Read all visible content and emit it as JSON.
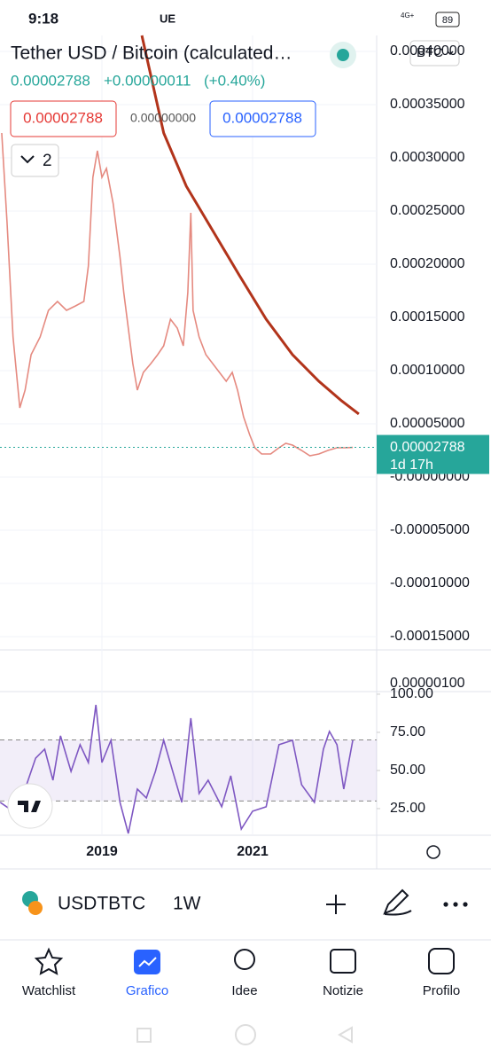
{
  "status_bar": {
    "time": "9:18",
    "region": "UE",
    "network": "4G+",
    "battery": "89"
  },
  "header": {
    "title": "Tether USD / Bitcoin (calculated…",
    "price": "0.00002788",
    "change": "+0.00000011",
    "change_pct": "(+0.40%)",
    "sell": "0.00002788",
    "spread": "0.00000000",
    "buy": "0.00002788",
    "indicators": "2",
    "currency": "BTC"
  },
  "price_chart": {
    "type": "line",
    "xlim": [
      2017.647,
      2022.647
    ],
    "xticks": [
      2019,
      2021
    ],
    "ylim": [
      -0.00016,
      0.000415
    ],
    "yticks": [
      {
        "value": 0.0004,
        "label": "0.00040000"
      },
      {
        "value": 0.00035,
        "label": "0.00035000"
      },
      {
        "value": 0.0003,
        "label": "0.00030000"
      },
      {
        "value": 0.00025,
        "label": "0.00025000"
      },
      {
        "value": 0.0002,
        "label": "0.00020000"
      },
      {
        "value": 0.00015,
        "label": "0.00015000"
      },
      {
        "value": 0.0001,
        "label": "0.00010000"
      },
      {
        "value": 5e-05,
        "label": "0.00005000"
      },
      {
        "value": 0,
        "label": "-0.00000000"
      },
      {
        "value": -5e-05,
        "label": "-0.00005000"
      },
      {
        "value": -0.0001,
        "label": "-0.00010000"
      },
      {
        "value": -0.00015,
        "label": "-0.00015000"
      }
    ],
    "last_price": {
      "value": 2.788e-05,
      "label": "0.00002788",
      "countdown": "1d 17h",
      "color": "#26a69a"
    },
    "series": [
      {
        "color": "#e58a80",
        "x": [
          2017.67,
          2017.74,
          2017.82,
          2017.91,
          2017.98,
          2018.06,
          2018.18,
          2018.29,
          2018.41,
          2018.53,
          2018.65,
          2018.76,
          2018.82,
          2018.88,
          2018.94,
          2019.0,
          2019.06,
          2019.15,
          2019.24,
          2019.29,
          2019.35,
          2019.41,
          2019.47,
          2019.55,
          2019.65,
          2019.74,
          2019.82,
          2019.91,
          2020.0,
          2020.08,
          2020.14,
          2020.18,
          2020.21,
          2020.29,
          2020.38,
          2020.47,
          2020.56,
          2020.65,
          2020.73,
          2020.8,
          2020.88,
          2020.96,
          2021.03,
          2021.12,
          2021.24,
          2021.35,
          2021.44,
          2021.53,
          2021.65,
          2021.76,
          2021.88,
          2022.0,
          2022.12,
          2022.24,
          2022.33
        ],
        "values": [
          0.00032333,
          0.00024,
          0.00013167,
          6.5e-05,
          8.167e-05,
          0.000115,
          0.00013167,
          0.00015667,
          0.000165,
          0.00015667,
          0.00016083,
          0.000165,
          0.00019833,
          0.00028167,
          0.00030667,
          0.00028167,
          0.00029,
          0.00025667,
          0.00020667,
          0.00017333,
          0.00014,
          0.00010667,
          8.167e-05,
          9.833e-05,
          0.00010667,
          0.000115,
          0.00012333,
          0.00014833,
          0.00014,
          0.00012333,
          0.00017333,
          0.00024833,
          0.00015667,
          0.00013167,
          0.000115,
          0.00010667,
          9.833e-05,
          9e-05,
          9.833e-05,
          8.167e-05,
          5.667e-05,
          4e-05,
          2.75e-05,
          2.167e-05,
          2.167e-05,
          2.75e-05,
          3.167e-05,
          3e-05,
          2.5e-05,
          2e-05,
          2.167e-05,
          2.5e-05,
          2.75e-05,
          2.75e-05,
          2.788e-05
        ]
      },
      {
        "color": "#b2341b",
        "x": [
          2019.53,
          2019.82,
          2020.12,
          2020.47,
          2020.82,
          2021.18,
          2021.53,
          2021.88,
          2022.18,
          2022.41
        ],
        "values": [
          0.000415,
          0.00032333,
          0.00027333,
          0.00023167,
          0.00019,
          0.00014833,
          0.000115,
          9e-05,
          7.167e-05,
          5.917e-05
        ]
      }
    ]
  },
  "volume_axis_label": "0.00000100",
  "rsi_chart": {
    "type": "line",
    "ylim": [
      8.7,
      101.7
    ],
    "band": [
      30,
      70
    ],
    "band_color": "#7e57c2",
    "yticks": [
      {
        "value": 100,
        "label": "100.00"
      },
      {
        "value": 75,
        "label": "75.00"
      },
      {
        "value": 50,
        "label": "50.00"
      },
      {
        "value": 25,
        "label": "25.00"
      }
    ],
    "series": [
      {
        "color": "#7e57c2",
        "x": [
          2017.65,
          2017.82,
          2017.94,
          2018.12,
          2018.24,
          2018.35,
          2018.45,
          2018.59,
          2018.71,
          2018.82,
          2018.92,
          2019.0,
          2019.12,
          2019.24,
          2019.35,
          2019.47,
          2019.59,
          2019.71,
          2019.82,
          2019.94,
          2020.06,
          2020.18,
          2020.29,
          2020.41,
          2020.59,
          2020.71,
          2020.85,
          2021.0,
          2021.18,
          2021.35,
          2021.53,
          2021.65,
          2021.82,
          2021.94,
          2022.02,
          2022.12,
          2022.21,
          2022.33
        ],
        "values": [
          29.1,
          23.3,
          32.0,
          58.1,
          64.0,
          43.6,
          72.7,
          49.4,
          66.9,
          55.2,
          93.0,
          55.2,
          69.8,
          29.1,
          8.7,
          37.8,
          32.0,
          49.4,
          69.8,
          49.4,
          29.1,
          84.3,
          34.9,
          43.6,
          26.2,
          46.5,
          11.6,
          23.3,
          26.2,
          66.9,
          69.8,
          40.7,
          29.1,
          64.0,
          75.6,
          66.9,
          37.8,
          69.8
        ]
      }
    ]
  },
  "toolbar": {
    "symbol": "USDTBTC",
    "interval": "1W"
  },
  "nav": [
    "Watchlist",
    "Grafico",
    "Idee",
    "Notizie",
    "Profilo"
  ]
}
